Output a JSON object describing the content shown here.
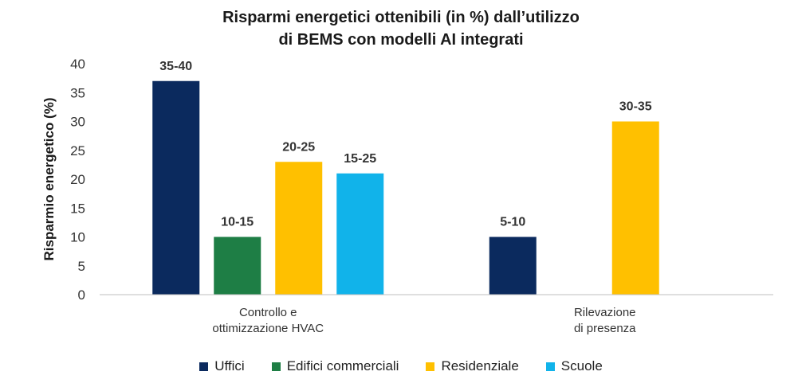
{
  "chart_data": {
    "type": "bar",
    "title_lines": [
      "Risparmi energetici ottenibili (in %) dall’utilizzo",
      "di BEMS con modelli AI integrati"
    ],
    "xlabel": "",
    "ylabel": "Risparmio energetico (%)",
    "ylim": [
      0,
      40
    ],
    "yticks": [
      0,
      5,
      10,
      15,
      20,
      25,
      30,
      35,
      40
    ],
    "grid": false,
    "legend_position": "bottom",
    "categories": [
      [
        "Controllo e",
        "ottimizzazione HVAC"
      ],
      [
        "Rilevazione",
        "di presenza"
      ]
    ],
    "series": [
      {
        "name": "Uffici",
        "color": "#0b2a5e",
        "values": [
          37,
          10
        ],
        "labels": [
          "35-40",
          "5-10"
        ]
      },
      {
        "name": "Edifici commerciali",
        "color": "#1e7e45",
        "values": [
          10,
          null
        ],
        "labels": [
          "10-15",
          ""
        ]
      },
      {
        "name": "Residenziale",
        "color": "#ffc000",
        "values": [
          23,
          30
        ],
        "labels": [
          "20-25",
          "30-35"
        ]
      },
      {
        "name": "Scuole",
        "color": "#11b3ea",
        "values": [
          21,
          null
        ],
        "labels": [
          "15-25",
          ""
        ]
      }
    ]
  }
}
